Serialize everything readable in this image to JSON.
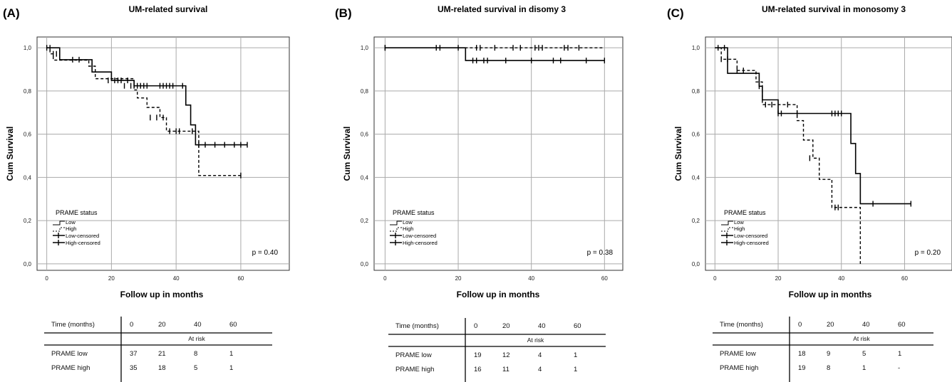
{
  "chart_data": [
    {
      "type": "line",
      "panel_letter": "(A)",
      "title": "UM-related survival",
      "xlabel": "Follow up in months",
      "ylabel": "Cum Survival",
      "xlim": [
        -3,
        75
      ],
      "ylim": [
        -0.03,
        1.05
      ],
      "xticks": [
        "0",
        "20",
        "40",
        "60"
      ],
      "yticks": [
        "0,0",
        "0,2",
        "0,4",
        "0,6",
        "0,8",
        "1,0"
      ],
      "grid": true,
      "legend_title": "PRAME status",
      "legend_items": [
        "Low",
        "High",
        "Low-censored",
        "High-censored"
      ],
      "legend_placement": "bottom-left",
      "p_value": "p = 0.40",
      "series": [
        {
          "name": "Low",
          "style": "solid",
          "x": [
            0,
            4,
            14,
            20,
            27,
            42.5,
            43,
            44.5,
            46,
            62
          ],
          "y": [
            1.0,
            0.945,
            0.888,
            0.849,
            0.824,
            0.824,
            0.735,
            0.643,
            0.551,
            0.551
          ]
        },
        {
          "name": "High",
          "style": "dashed",
          "x": [
            0,
            1,
            2,
            13,
            15,
            20,
            27,
            28,
            31,
            35,
            37,
            46,
            47,
            60
          ],
          "y": [
            1.0,
            0.972,
            0.943,
            0.915,
            0.857,
            0.857,
            0.805,
            0.768,
            0.724,
            0.677,
            0.614,
            0.614,
            0.409,
            0.409
          ]
        },
        {
          "name": "Low-censored",
          "style": "marks",
          "x": [
            0,
            1,
            2,
            3,
            14,
            21,
            23,
            25,
            27,
            28,
            29,
            30,
            31,
            35,
            36,
            37,
            38,
            39,
            42,
            45,
            47,
            49,
            52,
            55,
            58,
            60,
            62
          ],
          "y": [
            1.0,
            1.0,
            0.972,
            0.972,
            0.915,
            0.849,
            0.849,
            0.849,
            0.824,
            0.824,
            0.824,
            0.824,
            0.824,
            0.824,
            0.824,
            0.824,
            0.824,
            0.824,
            0.824,
            0.614,
            0.551,
            0.551,
            0.551,
            0.551,
            0.551,
            0.551,
            0.551
          ]
        },
        {
          "name": "High-censored",
          "style": "marks",
          "x": [
            8,
            10,
            19,
            22,
            24,
            26,
            32,
            34,
            36,
            38,
            40,
            41,
            60
          ],
          "y": [
            0.945,
            0.945,
            0.849,
            0.849,
            0.824,
            0.824,
            0.677,
            0.677,
            0.677,
            0.614,
            0.614,
            0.614,
            0.409
          ]
        }
      ],
      "risk_table": {
        "time_label": "Time (months)",
        "times": [
          "0",
          "20",
          "40",
          "60"
        ],
        "at_risk_label": "At risk",
        "rows": [
          {
            "label": "PRAME low",
            "values": [
              "37",
              "21",
              "8",
              "1"
            ]
          },
          {
            "label": "PRAME high",
            "values": [
              "35",
              "18",
              "5",
              "1"
            ]
          }
        ]
      }
    },
    {
      "type": "line",
      "panel_letter": "(B)",
      "title": "UM-related survival in disomy 3",
      "xlabel": "Follow up in months",
      "ylabel": "Cum Survival",
      "xlim": [
        -3,
        65
      ],
      "ylim": [
        -0.03,
        1.05
      ],
      "xticks": [
        "0",
        "20",
        "40",
        "60"
      ],
      "yticks": [
        "0,0",
        "0,2",
        "0,4",
        "0,6",
        "0,8",
        "1,0"
      ],
      "grid": true,
      "legend_title": "PRAME status",
      "legend_items": [
        "Low",
        "High",
        "Low-censored",
        "High-censored"
      ],
      "legend_placement": "bottom-left",
      "p_value": "p = 0.38",
      "series": [
        {
          "name": "Low",
          "style": "solid",
          "x": [
            0,
            21,
            22,
            60
          ],
          "y": [
            1.0,
            1.0,
            0.941,
            0.941
          ]
        },
        {
          "name": "High",
          "style": "dashed",
          "x": [
            0,
            60
          ],
          "y": [
            1.0,
            1.0
          ]
        },
        {
          "name": "Low-censored",
          "style": "marks",
          "x": [
            0,
            15,
            24,
            25,
            27,
            28,
            33,
            40,
            46,
            48,
            55,
            60
          ],
          "y": [
            1.0,
            1.0,
            0.941,
            0.941,
            0.941,
            0.941,
            0.941,
            0.941,
            0.941,
            0.941,
            0.941,
            0.941
          ]
        },
        {
          "name": "High-censored",
          "style": "marks",
          "x": [
            0,
            14,
            20,
            25,
            26,
            30,
            35,
            37,
            41,
            42,
            43,
            49,
            50,
            53
          ],
          "y": [
            1.0,
            1.0,
            1.0,
            1.0,
            1.0,
            1.0,
            1.0,
            1.0,
            1.0,
            1.0,
            1.0,
            1.0,
            1.0,
            1.0
          ]
        }
      ],
      "risk_table": {
        "time_label": "Time (months)",
        "times": [
          "0",
          "20",
          "40",
          "60"
        ],
        "at_risk_label": "At risk",
        "rows": [
          {
            "label": "PRAME low",
            "values": [
              "19",
              "12",
              "4",
              "1"
            ]
          },
          {
            "label": "PRAME high",
            "values": [
              "16",
              "11",
              "4",
              "1"
            ]
          }
        ]
      }
    },
    {
      "type": "line",
      "panel_letter": "(C)",
      "title": "UM-related survival in monosomy 3",
      "xlabel": "Follow up in months",
      "ylabel": "Cum Survival",
      "xlim": [
        -3,
        75
      ],
      "ylim": [
        -0.03,
        1.05
      ],
      "xticks": [
        "0",
        "20",
        "40",
        "60"
      ],
      "yticks": [
        "0,0",
        "0,2",
        "0,4",
        "0,6",
        "0,8",
        "1,0"
      ],
      "grid": true,
      "legend_title": "PRAME status",
      "legend_items": [
        "Low",
        "High",
        "Low-censored",
        "High-censored"
      ],
      "legend_placement": "bottom-left",
      "p_value": "p = 0.20",
      "series": [
        {
          "name": "Low",
          "style": "solid",
          "x": [
            0,
            4,
            14,
            15,
            20,
            42,
            43,
            44.5,
            46,
            62
          ],
          "y": [
            1.0,
            0.882,
            0.822,
            0.759,
            0.696,
            0.696,
            0.557,
            0.418,
            0.278,
            0.278
          ]
        },
        {
          "name": "High",
          "style": "dashed",
          "x": [
            0,
            2,
            7,
            13,
            15,
            24,
            26,
            28,
            31,
            33,
            37,
            45,
            46
          ],
          "y": [
            1.0,
            0.947,
            0.895,
            0.842,
            0.737,
            0.737,
            0.663,
            0.573,
            0.489,
            0.391,
            0.261,
            0.261,
            0.0
          ]
        },
        {
          "name": "Low-censored",
          "style": "marks",
          "x": [
            1,
            2,
            4,
            14,
            20,
            21,
            26,
            37,
            38,
            39,
            40,
            50,
            62
          ],
          "y": [
            1.0,
            0.947,
            0.947,
            0.822,
            0.696,
            0.696,
            0.696,
            0.696,
            0.696,
            0.696,
            0.696,
            0.278,
            0.278
          ]
        },
        {
          "name": "High-censored",
          "style": "marks",
          "x": [
            3,
            7,
            9,
            16,
            18,
            23,
            30,
            38,
            39
          ],
          "y": [
            1.0,
            0.895,
            0.895,
            0.737,
            0.737,
            0.737,
            0.489,
            0.261,
            0.261
          ]
        }
      ],
      "risk_table": {
        "time_label": "Time (months)",
        "times": [
          "0",
          "20",
          "40",
          "60"
        ],
        "at_risk_label": "At risk",
        "rows": [
          {
            "label": "PRAME low",
            "values": [
              "18",
              "9",
              "5",
              "1"
            ]
          },
          {
            "label": "PRAME high",
            "values": [
              "19",
              "8",
              "1",
              "-"
            ]
          }
        ]
      }
    }
  ]
}
